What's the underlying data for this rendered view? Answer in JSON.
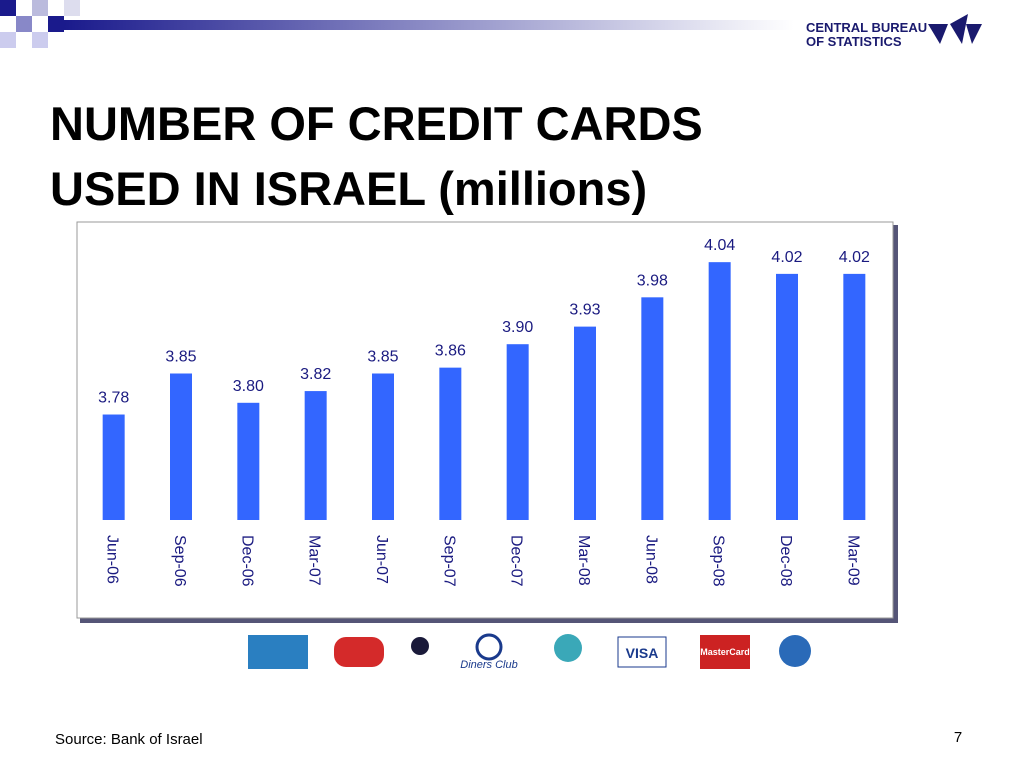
{
  "header": {
    "org_line1": "CENTRAL BUREAU",
    "org_line2": "OF STATISTICS"
  },
  "chart_data": {
    "type": "bar",
    "title_line1": "NUMBER OF CREDIT CARDS",
    "title_line2": "USED IN ISRAEL (millions)",
    "categories": [
      "Jun-06",
      "Sep-06",
      "Dec-06",
      "Mar-07",
      "Jun-07",
      "Sep-07",
      "Dec-07",
      "Mar-08",
      "Jun-08",
      "Sep-08",
      "Dec-08",
      "Mar-09"
    ],
    "values": [
      3.78,
      3.85,
      3.8,
      3.82,
      3.85,
      3.86,
      3.9,
      3.93,
      3.98,
      4.04,
      4.02,
      4.02
    ],
    "value_labels": [
      "3.78",
      "3.85",
      "3.80",
      "3.82",
      "3.85",
      "3.86",
      "3.90",
      "3.93",
      "3.98",
      "4.04",
      "4.02",
      "4.02"
    ],
    "color": "#3366ff",
    "ylim": [
      3.6,
      4.1
    ]
  },
  "logos": [
    "Diners Club",
    "VISA",
    "MasterCard"
  ],
  "footer": {
    "source": "Source: Bank of  Israel",
    "page": "7"
  }
}
